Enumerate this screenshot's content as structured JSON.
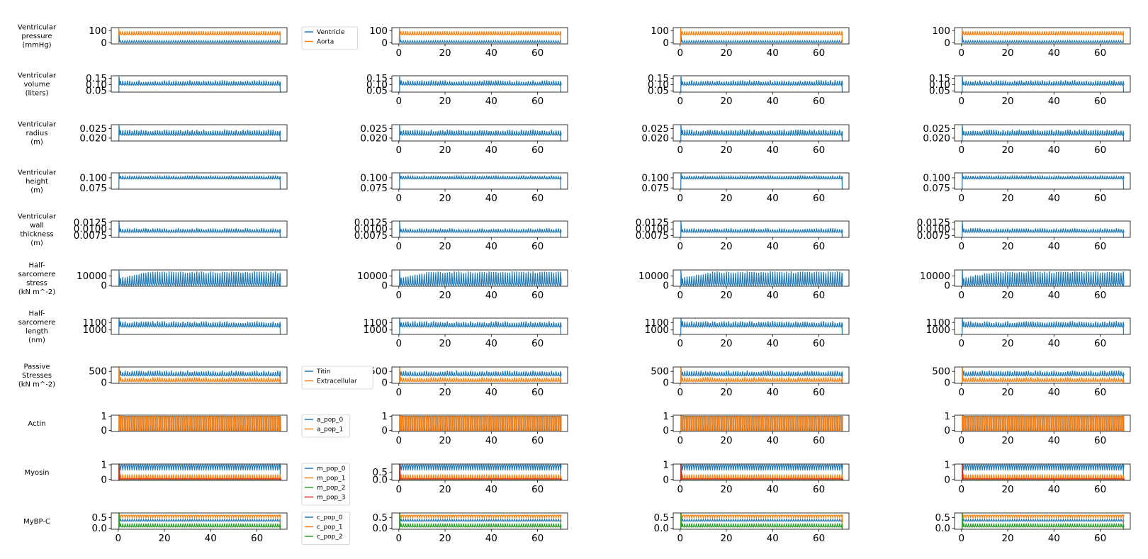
{
  "colors": {
    "blue": "#1f77b4",
    "orange": "#ff7f0e",
    "green": "#2ca02c",
    "red": "#d62728"
  },
  "chart_data": {
    "type": "line",
    "grid": false,
    "xlim": [
      -3,
      73
    ],
    "xticks": [
      0,
      20,
      40,
      60
    ],
    "columns": 4,
    "rows": [
      {
        "label": [
          "Ventricular",
          "pressure",
          "(mmHg)"
        ],
        "ylim": [
          -10,
          125
        ],
        "yticks": [
          {
            "v": 0,
            "t": "0"
          },
          {
            "v": 100,
            "t": "100"
          }
        ],
        "legend": [
          "Ventricle",
          "Aorta"
        ],
        "series": [
          {
            "color": "blue",
            "kind": "osc",
            "start": 0.2,
            "base": 1,
            "peak": 17,
            "lo": 0,
            "hi": 120,
            "chaotic": false
          },
          {
            "color": "orange",
            "kind": "osc",
            "start": 0.2,
            "base": 65,
            "peak": 95,
            "lo": 0,
            "hi": 120,
            "chaotic": false
          }
        ]
      },
      {
        "label": [
          "Ventricular",
          "volume",
          "(liters)"
        ],
        "ylim": [
          0.04,
          0.17
        ],
        "yticks": [
          {
            "v": 0.05,
            "t": "0.05"
          },
          {
            "v": 0.1,
            "t": "0.10"
          },
          {
            "v": 0.15,
            "t": "0.15"
          }
        ],
        "legend": [],
        "series": [
          {
            "color": "blue",
            "kind": "osc",
            "base": 0.095,
            "peak": 0.135,
            "lo": 0.04,
            "hi": 0.165,
            "chaotic": true
          }
        ]
      },
      {
        "label": [
          "Ventricular",
          "radius",
          "(m)"
        ],
        "ylim": [
          0.0185,
          0.027
        ],
        "yticks": [
          {
            "v": 0.02,
            "t": "0.020"
          },
          {
            "v": 0.025,
            "t": "0.025"
          }
        ],
        "legend": [],
        "series": [
          {
            "color": "blue",
            "kind": "osc",
            "base": 0.0215,
            "peak": 0.0245,
            "lo": 0.0185,
            "hi": 0.0268,
            "chaotic": true
          }
        ]
      },
      {
        "label": [
          "Ventricular",
          "height",
          "(m)"
        ],
        "ylim": [
          0.072,
          0.112
        ],
        "yticks": [
          {
            "v": 0.075,
            "t": "0.075"
          },
          {
            "v": 0.1,
            "t": "0.100"
          }
        ],
        "legend": [],
        "series": [
          {
            "color": "blue",
            "kind": "osc",
            "base": 0.097,
            "peak": 0.106,
            "lo": 0.072,
            "hi": 0.111,
            "chaotic": true
          }
        ]
      },
      {
        "label": [
          "Ventricular",
          "wall",
          "thickness",
          "(m)"
        ],
        "ylim": [
          0.0068,
          0.013
        ],
        "yticks": [
          {
            "v": 0.0075,
            "t": "0.0075"
          },
          {
            "v": 0.01,
            "t": "0.0100"
          },
          {
            "v": 0.0125,
            "t": "0.0125"
          }
        ],
        "legend": [],
        "series": [
          {
            "color": "blue",
            "kind": "osc",
            "base": 0.0087,
            "peak": 0.0103,
            "lo": 0.0068,
            "hi": 0.0129,
            "chaotic": true
          }
        ]
      },
      {
        "label": [
          "Half-",
          "sarcomere",
          "stress",
          "(kN m^-2)"
        ],
        "ylim": [
          -800,
          16500
        ],
        "yticks": [
          {
            "v": 0,
            "t": "0"
          },
          {
            "v": 10000,
            "t": "10000"
          }
        ],
        "legend": [],
        "series": [
          {
            "color": "blue",
            "kind": "osc",
            "start": 0.3,
            "base": 0,
            "peak": 15000,
            "lo": -800,
            "hi": 16000,
            "chaotic": false,
            "ramp": true
          }
        ]
      },
      {
        "label": [
          "Half-",
          "sarcomere",
          "length",
          "(nm)"
        ],
        "ylim": [
          940,
          1160
        ],
        "yticks": [
          {
            "v": 1000,
            "t": "1000"
          },
          {
            "v": 1100,
            "t": "1100"
          }
        ],
        "legend": [],
        "series": [
          {
            "color": "blue",
            "kind": "osc",
            "base": 1040,
            "peak": 1120,
            "lo": 940,
            "hi": 1160,
            "chaotic": true
          }
        ]
      },
      {
        "label": [
          "Passive",
          "Stresses",
          "(kN m^-2)"
        ],
        "ylim": [
          -40,
          700
        ],
        "yticks": [
          {
            "v": 0,
            "t": "0"
          },
          {
            "v": 500,
            "t": "500"
          }
        ],
        "legend": [
          "Titin",
          "Extracellular"
        ],
        "series": [
          {
            "color": "blue",
            "kind": "osc",
            "base": 300,
            "peak": 540,
            "lo": -40,
            "hi": 690,
            "chaotic": true
          },
          {
            "color": "orange",
            "kind": "osc",
            "base": 40,
            "peak": 240,
            "lo": -40,
            "hi": 690,
            "chaotic": true
          }
        ]
      },
      {
        "label": [
          "Actin"
        ],
        "ylim": [
          -0.08,
          1.08
        ],
        "yticks": [
          {
            "v": 0,
            "t": "0"
          },
          {
            "v": 1,
            "t": "1"
          }
        ],
        "legend": [
          "a_pop_0",
          "a_pop_1"
        ],
        "series": [
          {
            "color": "blue",
            "kind": "osc",
            "base": 1,
            "peak": 0,
            "lo": -0.08,
            "hi": 1.08,
            "chaotic": false,
            "square": true
          },
          {
            "color": "orange",
            "kind": "osc",
            "base": 0,
            "peak": 1,
            "lo": -0.08,
            "hi": 1.08,
            "chaotic": false,
            "square": true
          }
        ]
      },
      {
        "label": [
          "Myosin"
        ],
        "ylim": [
          -0.06,
          1.05
        ],
        "yticks": [
          {
            "v": 0,
            "t": "0"
          },
          {
            "v": 1,
            "t": "1"
          }
        ],
        "alt_yticks": [
          {
            "v": 0,
            "t": "0.0"
          },
          {
            "v": 0.5,
            "t": "0.5"
          }
        ],
        "legend": [
          "m_pop_0",
          "m_pop_1",
          "m_pop_2",
          "m_pop_3"
        ],
        "series": [
          {
            "color": "blue",
            "kind": "osc",
            "base": 1.0,
            "peak": 0.62,
            "lo": -0.06,
            "hi": 1.05,
            "chaotic": false
          },
          {
            "color": "orange",
            "kind": "osc",
            "base": 0.02,
            "peak": 0.34,
            "lo": -0.06,
            "hi": 1.05,
            "chaotic": false
          },
          {
            "color": "green",
            "kind": "osc",
            "base": 0,
            "peak": 0.04,
            "lo": -0.06,
            "hi": 1.05,
            "chaotic": false
          },
          {
            "color": "red",
            "kind": "osc",
            "base": 0.02,
            "peak": 0.05,
            "lo": -0.06,
            "hi": 1.05,
            "chaotic": false
          }
        ]
      },
      {
        "label": [
          "MyBP-C"
        ],
        "ylim": [
          -0.05,
          0.72
        ],
        "yticks": [
          {
            "v": 0,
            "t": "0.0"
          },
          {
            "v": 0.5,
            "t": "0.5"
          }
        ],
        "legend": [
          "c_pop_0",
          "c_pop_1",
          "c_pop_2"
        ],
        "series": [
          {
            "color": "blue",
            "kind": "osc",
            "base": 0.33,
            "peak": 0.42,
            "lo": -0.05,
            "hi": 0.72,
            "chaotic": false
          },
          {
            "color": "orange",
            "kind": "osc",
            "base": 0.62,
            "peak": 0.5,
            "lo": -0.05,
            "hi": 0.72,
            "chaotic": false
          },
          {
            "color": "green",
            "kind": "osc",
            "base": 0.05,
            "peak": 0.22,
            "lo": -0.05,
            "hi": 0.72,
            "chaotic": false
          }
        ]
      }
    ]
  }
}
